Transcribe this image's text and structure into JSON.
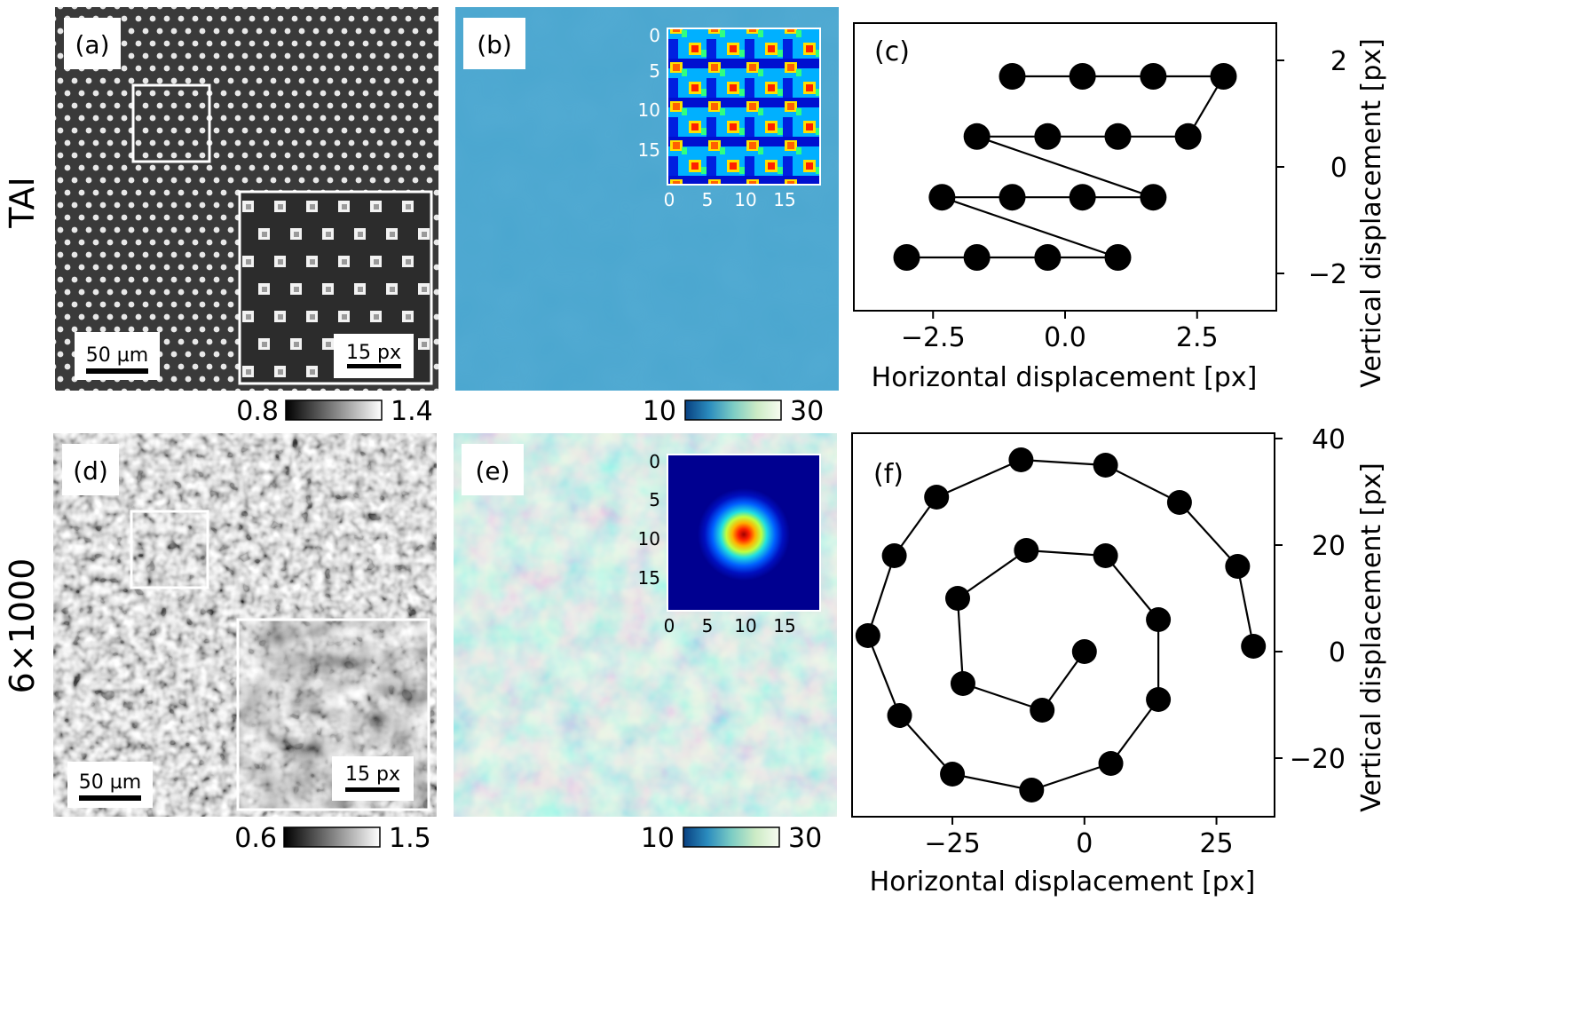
{
  "row_labels": [
    "TAI",
    "6×1000"
  ],
  "panel_labels": [
    "(a)",
    "(b)",
    "(c)",
    "(d)",
    "(e)",
    "(f)"
  ],
  "scalebars": {
    "a_main": "50 µm",
    "a_inset": "15 px",
    "d_main": "50 µm",
    "d_inset": "15 px"
  },
  "colorbars": {
    "a": {
      "min": "0.8",
      "max": "1.4",
      "colormap": "gray"
    },
    "b": {
      "min": "10",
      "max": "30",
      "colormap": "GnBu_r"
    },
    "d": {
      "min": "0.6",
      "max": "1.5",
      "colormap": "gray"
    },
    "e": {
      "min": "10",
      "max": "30",
      "colormap": "GnBu_r"
    }
  },
  "inset_ticks": {
    "x": [
      "0",
      "5",
      "10",
      "15"
    ],
    "y": [
      "0",
      "5",
      "10",
      "15"
    ],
    "colormap": "jet"
  },
  "chart_data": [
    {
      "panel": "(c)",
      "type": "line",
      "xlabel": "Horizontal displacement [px]",
      "ylabel": "Vertical displacement [px]",
      "xlim": [
        -4.0,
        4.0
      ],
      "ylim": [
        -2.7,
        2.7
      ],
      "xticks": [
        "−2.5",
        "0.0",
        "2.5"
      ],
      "xtick_values": [
        -2.5,
        0.0,
        2.5
      ],
      "yticks": [
        "−2",
        "0",
        "2"
      ],
      "ytick_values": [
        -2,
        0,
        2
      ],
      "series": [
        {
          "x": [
            -1.0,
            0.33,
            1.67,
            3.0,
            2.33,
            1.0,
            -0.33,
            -1.67,
            1.67,
            0.33,
            -1.0,
            -2.33,
            1.0,
            -0.33,
            -1.67,
            -3.0
          ],
          "y": [
            1.7,
            1.7,
            1.7,
            1.7,
            0.57,
            0.57,
            0.57,
            0.57,
            -0.57,
            -0.57,
            -0.57,
            -0.57,
            -1.7,
            -1.7,
            -1.7,
            -1.7
          ]
        }
      ]
    },
    {
      "panel": "(f)",
      "type": "line",
      "xlabel": "Horizontal displacement [px]",
      "ylabel": "Vertical displacement [px]",
      "xlim": [
        -44,
        36
      ],
      "ylim": [
        -31,
        41
      ],
      "xticks": [
        "−25",
        "0",
        "25"
      ],
      "xtick_values": [
        -25,
        0,
        25
      ],
      "yticks": [
        "−20",
        "0",
        "20",
        "40"
      ],
      "ytick_values": [
        -20,
        0,
        20,
        40
      ],
      "series": [
        {
          "x": [
            0,
            -8,
            -23,
            -24,
            -11,
            4,
            14,
            14,
            5,
            -10,
            -25,
            -35,
            -41,
            -36,
            -28,
            -12,
            4,
            18,
            29,
            32
          ],
          "y": [
            0,
            -11,
            -6,
            10,
            19,
            18,
            6,
            -9,
            -21,
            -26,
            -23,
            -12,
            3,
            18,
            29,
            36,
            35,
            28,
            16,
            1
          ]
        }
      ]
    }
  ]
}
